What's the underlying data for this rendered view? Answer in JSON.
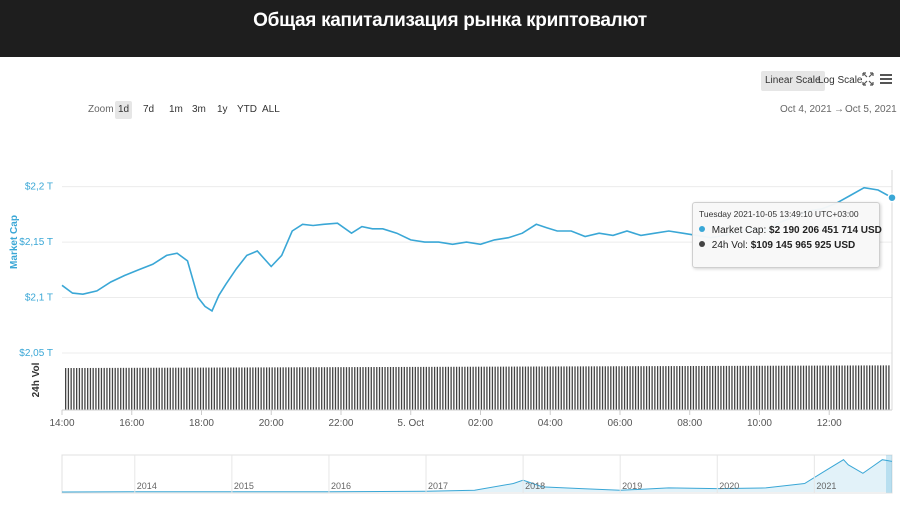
{
  "banner": {
    "title": "Общая капитализация рынка криптовалют"
  },
  "toolbar": {
    "linear_scale": "Linear Scale",
    "log_scale": "Log Scale",
    "fullscreen_icon": "fullscreen-icon",
    "menu_icon": "hamburger-menu-icon"
  },
  "zoom": {
    "label": "Zoom",
    "buttons": [
      "1d",
      "7d",
      "1m",
      "3m",
      "1y",
      "YTD",
      "ALL"
    ],
    "active": "1d"
  },
  "range": {
    "from": "Oct 4, 2021",
    "separator": "→",
    "to": "Oct 5, 2021"
  },
  "tooltip": {
    "date": "Tuesday 2021-10-05 13:49:10 UTC+03:00",
    "market_cap_label": "Market Cap:",
    "market_cap_value": "$2 190 206 451 714 USD",
    "volume_label": "24h Vol:",
    "volume_value": "$109 145 965 925 USD"
  },
  "colors": {
    "line": "#3aa7d6",
    "bars": "#444444",
    "navigator": "#3aa7d6",
    "banner": "#1e1e1e"
  },
  "chart_data": {
    "type": "line",
    "ylabel": "Market Cap",
    "ylabel_volume": "24h Vol",
    "y_ticks": [
      "$2,2 T",
      "$2,15 T",
      "$2,1 T",
      "$2,05 T"
    ],
    "y_tick_values": [
      2.2,
      2.15,
      2.1,
      2.05
    ],
    "ylim": [
      2.05,
      2.215
    ],
    "x_ticks": [
      "14:00",
      "16:00",
      "18:00",
      "20:00",
      "22:00",
      "5. Oct",
      "02:00",
      "04:00",
      "06:00",
      "08:00",
      "10:00",
      "12:00"
    ],
    "x_tick_hours": [
      14,
      16,
      18,
      20,
      22,
      24,
      26,
      28,
      30,
      32,
      34,
      36
    ],
    "xlim_hours": [
      14,
      37.8
    ],
    "series": [
      {
        "name": "Market Cap",
        "hours": [
          14.0,
          14.3,
          14.6,
          15.0,
          15.4,
          15.8,
          16.2,
          16.6,
          17.0,
          17.3,
          17.6,
          17.9,
          18.1,
          18.3,
          18.5,
          18.7,
          19.0,
          19.3,
          19.6,
          20.0,
          20.3,
          20.6,
          20.9,
          21.2,
          21.5,
          21.9,
          22.3,
          22.6,
          22.9,
          23.2,
          23.6,
          24.0,
          24.4,
          24.8,
          25.2,
          25.6,
          26.0,
          26.4,
          26.8,
          27.2,
          27.6,
          27.9,
          28.2,
          28.6,
          29.0,
          29.4,
          29.8,
          30.2,
          30.6,
          31.0,
          31.4,
          31.8,
          32.2,
          32.6,
          33.0,
          33.4,
          33.8,
          34.2,
          34.6,
          35.0,
          35.4,
          35.8,
          36.2,
          36.6,
          37.0,
          37.4,
          37.8
        ],
        "values": [
          2.111,
          2.104,
          2.103,
          2.106,
          2.114,
          2.12,
          2.125,
          2.13,
          2.138,
          2.14,
          2.133,
          2.1,
          2.092,
          2.088,
          2.102,
          2.112,
          2.126,
          2.138,
          2.142,
          2.128,
          2.138,
          2.16,
          2.166,
          2.165,
          2.166,
          2.167,
          2.158,
          2.164,
          2.162,
          2.162,
          2.158,
          2.152,
          2.15,
          2.15,
          2.148,
          2.15,
          2.148,
          2.152,
          2.154,
          2.158,
          2.166,
          2.163,
          2.16,
          2.16,
          2.155,
          2.158,
          2.156,
          2.16,
          2.156,
          2.158,
          2.16,
          2.158,
          2.156,
          2.154,
          2.156,
          2.159,
          2.162,
          2.16,
          2.168,
          2.173,
          2.178,
          2.18,
          2.185,
          2.192,
          2.199,
          2.197,
          2.19
        ]
      }
    ],
    "volume_series": {
      "name": "24h Vol",
      "bar_count": 300,
      "level": 0.93
    },
    "navigator": {
      "years": [
        "2014",
        "2015",
        "2016",
        "2017",
        "2018",
        "2019",
        "2020",
        "2021"
      ],
      "year_values": [
        2014,
        2015,
        2016,
        2017,
        2018,
        2019,
        2020,
        2021
      ],
      "xlim": [
        2013.25,
        2021.8
      ],
      "series": [
        {
          "name": "Market Cap (all time)",
          "x": [
            2013.25,
            2014.0,
            2015.0,
            2016.0,
            2017.0,
            2017.5,
            2017.9,
            2018.0,
            2018.2,
            2018.6,
            2019.0,
            2019.5,
            2020.0,
            2020.5,
            2020.9,
            2021.1,
            2021.3,
            2021.35,
            2021.5,
            2021.6,
            2021.7,
            2021.8
          ],
          "y": [
            0.0,
            0.01,
            0.005,
            0.01,
            0.02,
            0.05,
            0.25,
            0.35,
            0.15,
            0.1,
            0.05,
            0.12,
            0.1,
            0.12,
            0.25,
            0.6,
            0.95,
            0.8,
            0.55,
            0.75,
            0.95,
            0.9
          ]
        }
      ]
    }
  }
}
